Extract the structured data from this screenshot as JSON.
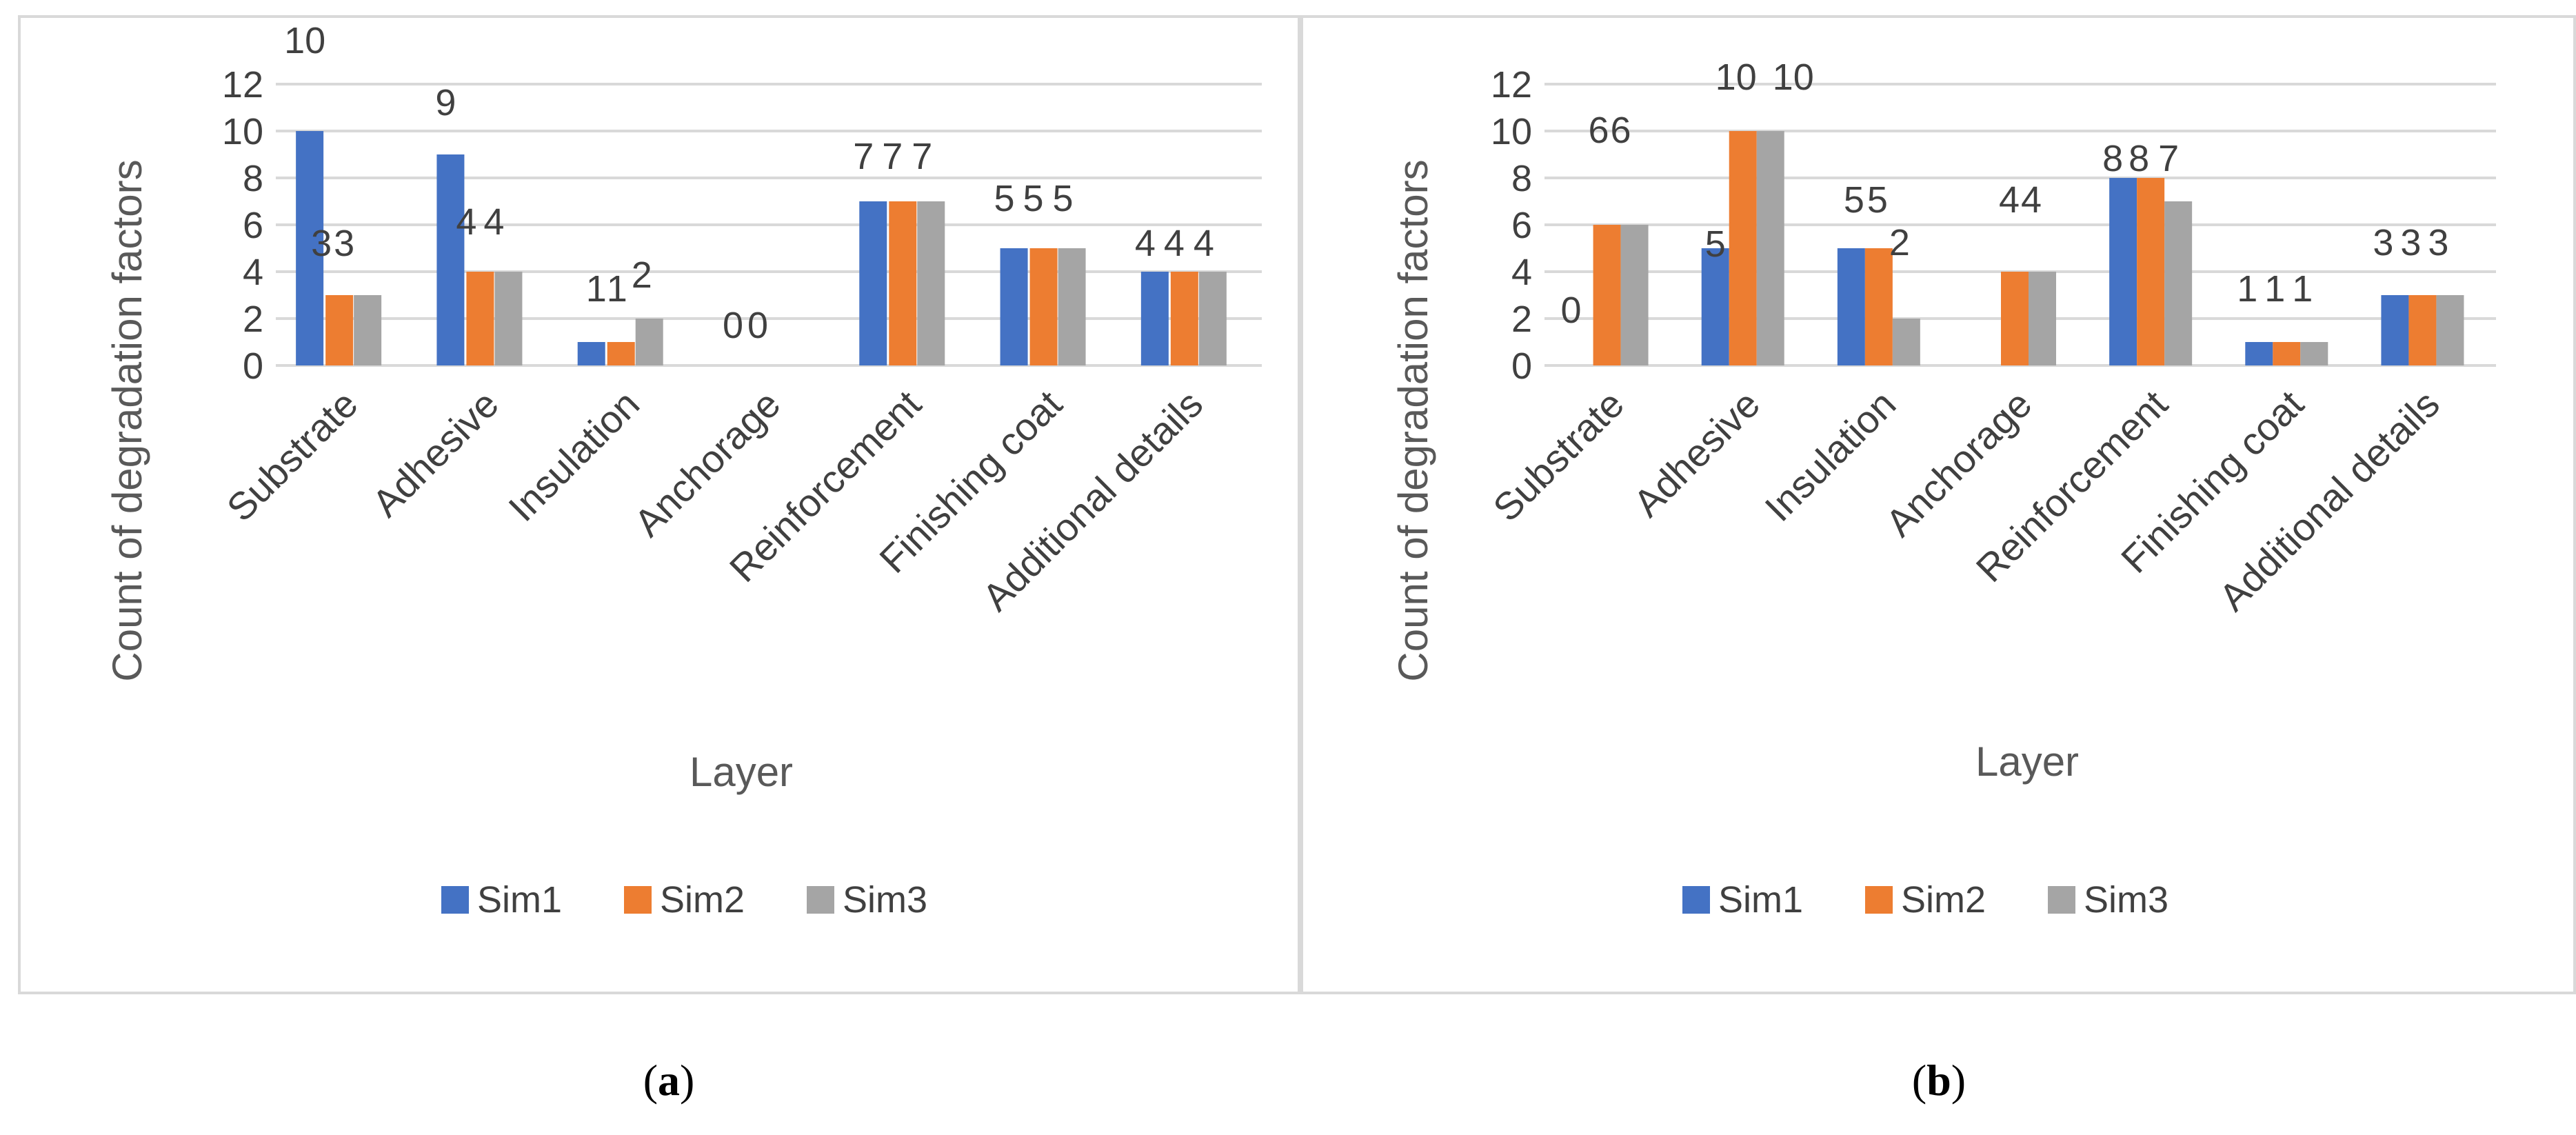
{
  "colors": {
    "Sim1": "#4472c4",
    "Sim2": "#ed7d31",
    "Sim3": "#a5a5a5"
  },
  "chart_data": [
    {
      "type": "bar",
      "title": "",
      "xlabel": "Layer",
      "ylabel": "Count of degradation factors",
      "ylim": [
        0,
        12
      ],
      "yticks": [
        "0",
        "2",
        "4",
        "6",
        "8",
        "10",
        "12"
      ],
      "grid": true,
      "legend": "bottom",
      "categories": [
        "Substrate",
        "Adhesive",
        "Insulation",
        "Anchorage",
        "Reinforcement",
        "Finishing coat",
        "Additional details"
      ],
      "series": [
        {
          "name": "Sim1",
          "values": [
            10,
            9,
            1,
            0,
            7,
            5,
            4
          ]
        },
        {
          "name": "Sim2",
          "values": [
            3,
            4,
            1,
            0,
            7,
            5,
            4
          ]
        },
        {
          "name": "Sim3",
          "values": [
            3,
            4,
            2,
            null,
            7,
            5,
            4
          ]
        }
      ]
    },
    {
      "type": "bar",
      "title": "",
      "xlabel": "Layer",
      "ylabel": "Count of degradation factors",
      "ylim": [
        0,
        12
      ],
      "yticks": [
        "0",
        "2",
        "4",
        "6",
        "8",
        "10",
        "12"
      ],
      "grid": true,
      "legend": "bottom",
      "categories": [
        "Substrate",
        "Adhesive",
        "Insulation",
        "Anchorage",
        "Reinforcement",
        "Finishing coat",
        "Additional details"
      ],
      "series": [
        {
          "name": "Sim1",
          "values": [
            0,
            5,
            5,
            null,
            8,
            1,
            3
          ]
        },
        {
          "name": "Sim2",
          "values": [
            6,
            10,
            5,
            4,
            8,
            1,
            3
          ]
        },
        {
          "name": "Sim3",
          "values": [
            6,
            10,
            2,
            4,
            7,
            1,
            3
          ]
        }
      ]
    }
  ],
  "captions": [
    "a",
    "b"
  ]
}
